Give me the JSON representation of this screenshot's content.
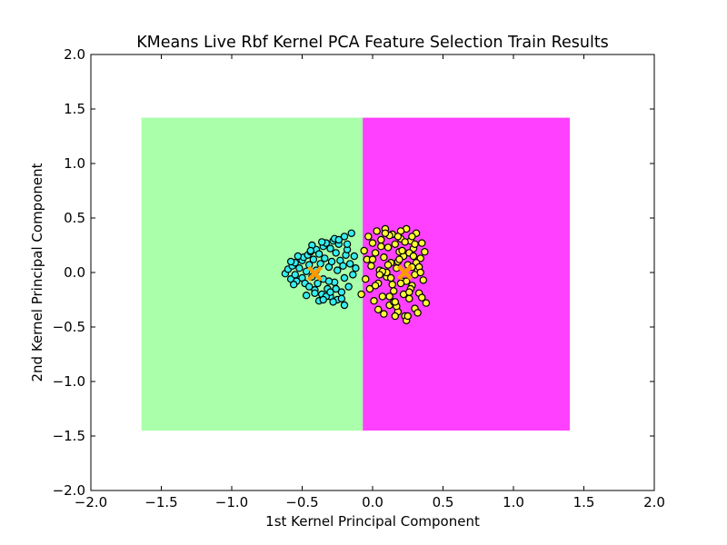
{
  "chart_data": {
    "type": "scatter",
    "title": "KMeans Live Rbf Kernel PCA Feature Selection Train Results",
    "xlabel": "1st Kernel Principal Component",
    "ylabel": "2nd Kernel Principal Component",
    "xlim": [
      -2.0,
      2.0
    ],
    "ylim": [
      -2.0,
      2.0
    ],
    "x_ticks": [
      -2.0,
      -1.5,
      -1.0,
      -0.5,
      0.0,
      0.5,
      1.0,
      1.5,
      2.0
    ],
    "y_ticks": [
      -2.0,
      -1.5,
      -1.0,
      -0.5,
      0.0,
      0.5,
      1.0,
      1.5,
      2.0
    ],
    "x_tick_labels": [
      "−2.0",
      "−1.5",
      "−1.0",
      "−0.5",
      "0.0",
      "0.5",
      "1.0",
      "1.5",
      "2.0"
    ],
    "y_tick_labels": [
      "−2.0",
      "−1.5",
      "−1.0",
      "−0.5",
      "0.0",
      "0.5",
      "1.0",
      "1.5",
      "2.0"
    ],
    "grid": false,
    "decision_regions": [
      {
        "cluster": 0,
        "color": "#aaffaa",
        "x": [
          -1.64,
          -0.07
        ],
        "y": [
          -1.45,
          1.42
        ]
      },
      {
        "cluster": 1,
        "color": "#ff40ff",
        "x": [
          -0.07,
          1.4
        ],
        "y": [
          -1.45,
          1.42
        ]
      }
    ],
    "decision_boundary": [
      [
        -0.13,
        1.42
      ],
      [
        -0.13,
        1.22
      ],
      [
        -0.11,
        1.22
      ],
      [
        -0.11,
        0.32
      ],
      [
        -0.09,
        0.32
      ],
      [
        -0.09,
        0.22
      ],
      [
        -0.11,
        0.22
      ],
      [
        -0.11,
        -0.62
      ],
      [
        -0.07,
        -0.62
      ],
      [
        -0.07,
        -1.45
      ]
    ],
    "series": [
      {
        "cluster": 0,
        "color": "#33eeee",
        "x": [
          -0.62,
          -0.6,
          -0.58,
          -0.57,
          -0.55,
          -0.55,
          -0.54,
          -0.52,
          -0.5,
          -0.5,
          -0.49,
          -0.48,
          -0.47,
          -0.46,
          -0.45,
          -0.45,
          -0.44,
          -0.43,
          -0.42,
          -0.41,
          -0.4,
          -0.4,
          -0.39,
          -0.38,
          -0.37,
          -0.36,
          -0.35,
          -0.35,
          -0.34,
          -0.33,
          -0.32,
          -0.31,
          -0.3,
          -0.3,
          -0.29,
          -0.28,
          -0.27,
          -0.26,
          -0.25,
          -0.25,
          -0.24,
          -0.23,
          -0.22,
          -0.21,
          -0.2,
          -0.2,
          -0.19,
          -0.18,
          -0.17,
          -0.16,
          -0.15,
          -0.14,
          -0.13,
          -0.12,
          -0.58,
          -0.56,
          -0.53,
          -0.47,
          -0.43,
          -0.38,
          -0.33,
          -0.28,
          -0.27,
          -0.22,
          -0.2,
          -0.36,
          -0.31,
          -0.24,
          -0.18,
          -0.44,
          -0.41,
          -0.35,
          -0.3,
          -0.26
        ],
        "y": [
          -0.01,
          0.03,
          -0.06,
          0.06,
          -0.02,
          0.09,
          -0.08,
          0.04,
          -0.05,
          0.11,
          0.14,
          -0.1,
          0.01,
          0.16,
          -0.13,
          0.07,
          0.19,
          -0.04,
          0.12,
          -0.16,
          0.21,
          0.02,
          -0.1,
          0.17,
          0.08,
          -0.2,
          0.24,
          -0.06,
          0.13,
          0.27,
          -0.15,
          0.05,
          0.22,
          -0.22,
          0.1,
          0.29,
          -0.09,
          0.18,
          0.02,
          -0.25,
          0.26,
          0.11,
          -0.18,
          0.06,
          0.33,
          -0.05,
          0.16,
          0.21,
          -0.13,
          0.08,
          0.36,
          -0.02,
          0.15,
          0.04,
          0.1,
          -0.11,
          0.15,
          -0.21,
          0.25,
          -0.26,
          -0.22,
          -0.27,
          0.31,
          -0.24,
          -0.3,
          0.28,
          -0.08,
          0.3,
          0.26,
          0.2,
          -0.19,
          -0.25,
          -0.18,
          -0.15
        ]
      },
      {
        "cluster": 1,
        "color": "#ffff33",
        "x": [
          -0.08,
          -0.06,
          -0.05,
          -0.04,
          -0.03,
          -0.02,
          -0.01,
          0.0,
          0.01,
          0.02,
          0.03,
          0.04,
          0.05,
          0.06,
          0.07,
          0.08,
          0.09,
          0.1,
          0.11,
          0.12,
          0.13,
          0.14,
          0.15,
          0.16,
          0.17,
          0.18,
          0.19,
          0.2,
          0.21,
          0.22,
          0.23,
          0.24,
          0.25,
          0.26,
          0.27,
          0.28,
          0.29,
          0.3,
          0.31,
          0.32,
          0.33,
          0.34,
          0.35,
          0.36,
          0.37,
          0.38,
          0.04,
          0.08,
          0.12,
          0.16,
          0.2,
          0.24,
          0.28,
          0.32,
          0.1,
          0.14,
          0.18,
          0.22,
          0.26,
          0.3,
          0.06,
          0.11,
          0.15,
          0.19,
          0.23,
          0.27,
          0.31,
          0.35,
          0.02,
          0.09,
          0.13,
          0.17,
          0.21,
          0.25,
          0.29,
          0.33,
          0.12,
          0.18,
          0.24,
          0.3,
          0.07,
          0.16,
          0.26,
          0.34,
          0.0,
          0.05,
          0.2,
          0.28
        ],
        "y": [
          -0.2,
          0.2,
          -0.06,
          0.12,
          0.33,
          -0.15,
          0.06,
          0.27,
          -0.26,
          0.18,
          0.38,
          -0.1,
          0.02,
          0.3,
          -0.22,
          0.14,
          0.4,
          -0.04,
          0.23,
          -0.3,
          0.09,
          0.35,
          -0.17,
          0.26,
          0.04,
          -0.36,
          0.19,
          0.31,
          -0.08,
          0.15,
          -0.4,
          0.4,
          0.07,
          -0.24,
          0.29,
          -0.12,
          0.22,
          -0.33,
          0.36,
          0.02,
          -0.19,
          0.13,
          0.27,
          -0.07,
          0.19,
          -0.28,
          -0.34,
          -0.38,
          0.34,
          -0.4,
          0.38,
          -0.44,
          0.33,
          -0.37,
          0.0,
          -0.11,
          0.1,
          -0.2,
          0.18,
          -0.02,
          0.24,
          0.07,
          -0.27,
          0.12,
          0.28,
          -0.15,
          0.09,
          -0.23,
          -0.12,
          0.36,
          -0.05,
          -0.31,
          0.2,
          -0.4,
          0.15,
          0.05,
          -0.22,
          0.33,
          -0.08,
          0.26,
          0.01,
          -0.27,
          -0.18,
          0.0,
          0.12,
          -0.02,
          -0.1,
          0.05
        ]
      }
    ],
    "centroids": [
      {
        "cluster": 0,
        "x": -0.41,
        "y": -0.01,
        "marker": "x",
        "color": "#ff9900"
      },
      {
        "cluster": 1,
        "x": 0.23,
        "y": 0.0,
        "marker": "x",
        "color": "#ff9900"
      }
    ]
  }
}
